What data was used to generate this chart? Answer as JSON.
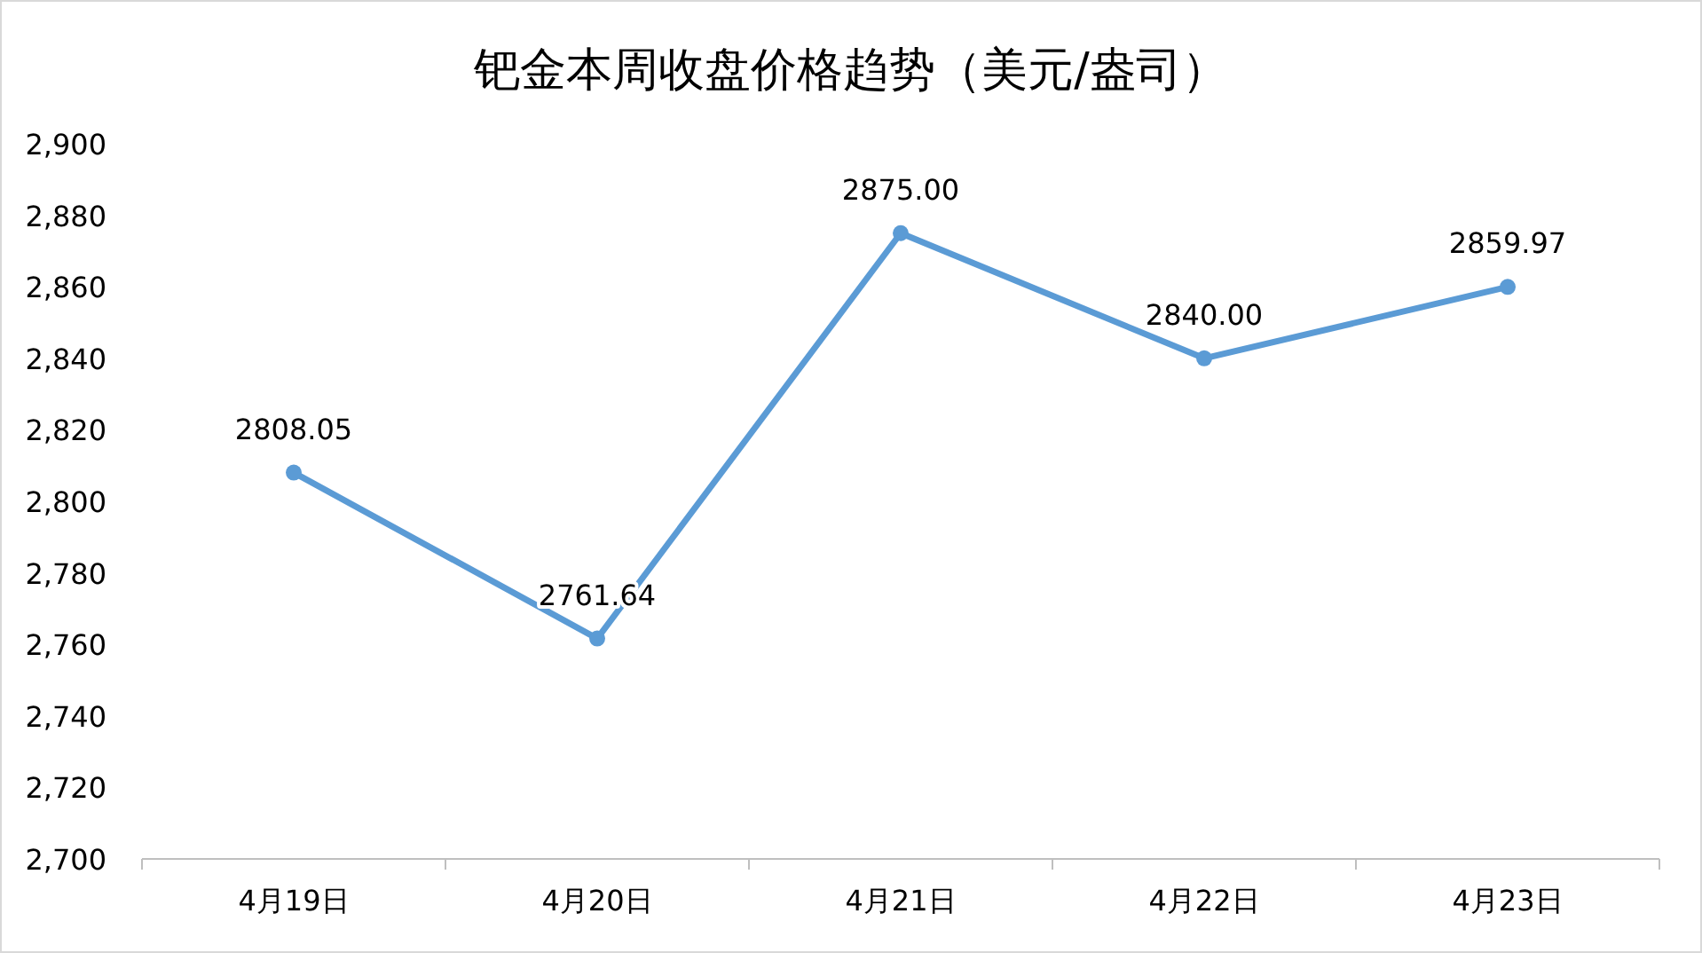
{
  "chart_data": {
    "type": "line",
    "title": "钯金本周收盘价格趋势（美元/盎司）",
    "categories": [
      "4月19日",
      "4月20日",
      "4月21日",
      "4月22日",
      "4月23日"
    ],
    "series": [
      {
        "color": "#5b9bd5",
        "values": [
          2808.05,
          2761.64,
          2875.0,
          2840.0,
          2859.97
        ],
        "value_labels": [
          "2808.05",
          "2761.64",
          "2875.00",
          "2840.00",
          "2859.97"
        ]
      }
    ],
    "ylim": [
      2700,
      2900
    ],
    "yticks": [
      {
        "value": 2700,
        "label": "2,700"
      },
      {
        "value": 2720,
        "label": "2,720"
      },
      {
        "value": 2740,
        "label": "2,740"
      },
      {
        "value": 2760,
        "label": "2,760"
      },
      {
        "value": 2780,
        "label": "2,780"
      },
      {
        "value": 2800,
        "label": "2,800"
      },
      {
        "value": 2820,
        "label": "2,820"
      },
      {
        "value": 2840,
        "label": "2,840"
      },
      {
        "value": 2860,
        "label": "2,860"
      },
      {
        "value": 2880,
        "label": "2,880"
      },
      {
        "value": 2900,
        "label": "2,900"
      }
    ],
    "marker": "circle"
  }
}
